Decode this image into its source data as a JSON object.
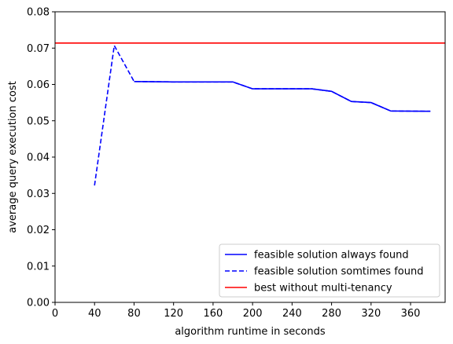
{
  "chart_data": {
    "type": "line",
    "xlabel": "algorithm runtime in seconds",
    "ylabel": "average query execution cost",
    "xlim": [
      0,
      395
    ],
    "ylim": [
      0,
      0.08
    ],
    "xticks": [
      0,
      40,
      80,
      120,
      160,
      200,
      240,
      280,
      320,
      360
    ],
    "yticks": [
      0.0,
      0.01,
      0.02,
      0.03,
      0.04,
      0.05,
      0.06,
      0.07,
      0.08
    ],
    "grid": false,
    "legend_position": "lower-right",
    "series": [
      {
        "name": "feasible solution always found",
        "color": "#0000ff",
        "style": "solid",
        "x": [
          80,
          120,
          180,
          200,
          260,
          280,
          300,
          320,
          340,
          380
        ],
        "y": [
          0.0608,
          0.0607,
          0.0607,
          0.0588,
          0.0588,
          0.0581,
          0.0553,
          0.055,
          0.0527,
          0.0526
        ]
      },
      {
        "name": "feasible solution somtimes found",
        "color": "#0000ff",
        "style": "dashed",
        "x": [
          40,
          60,
          80,
          120,
          180,
          200,
          260,
          280,
          300,
          320,
          340,
          380
        ],
        "y": [
          0.0322,
          0.0707,
          0.0608,
          0.0607,
          0.0607,
          0.0588,
          0.0588,
          0.0581,
          0.0553,
          0.055,
          0.0527,
          0.0526
        ]
      },
      {
        "name": "best without multi-tenancy",
        "color": "#ff0000",
        "style": "solid",
        "hline": 0.0714
      }
    ]
  }
}
